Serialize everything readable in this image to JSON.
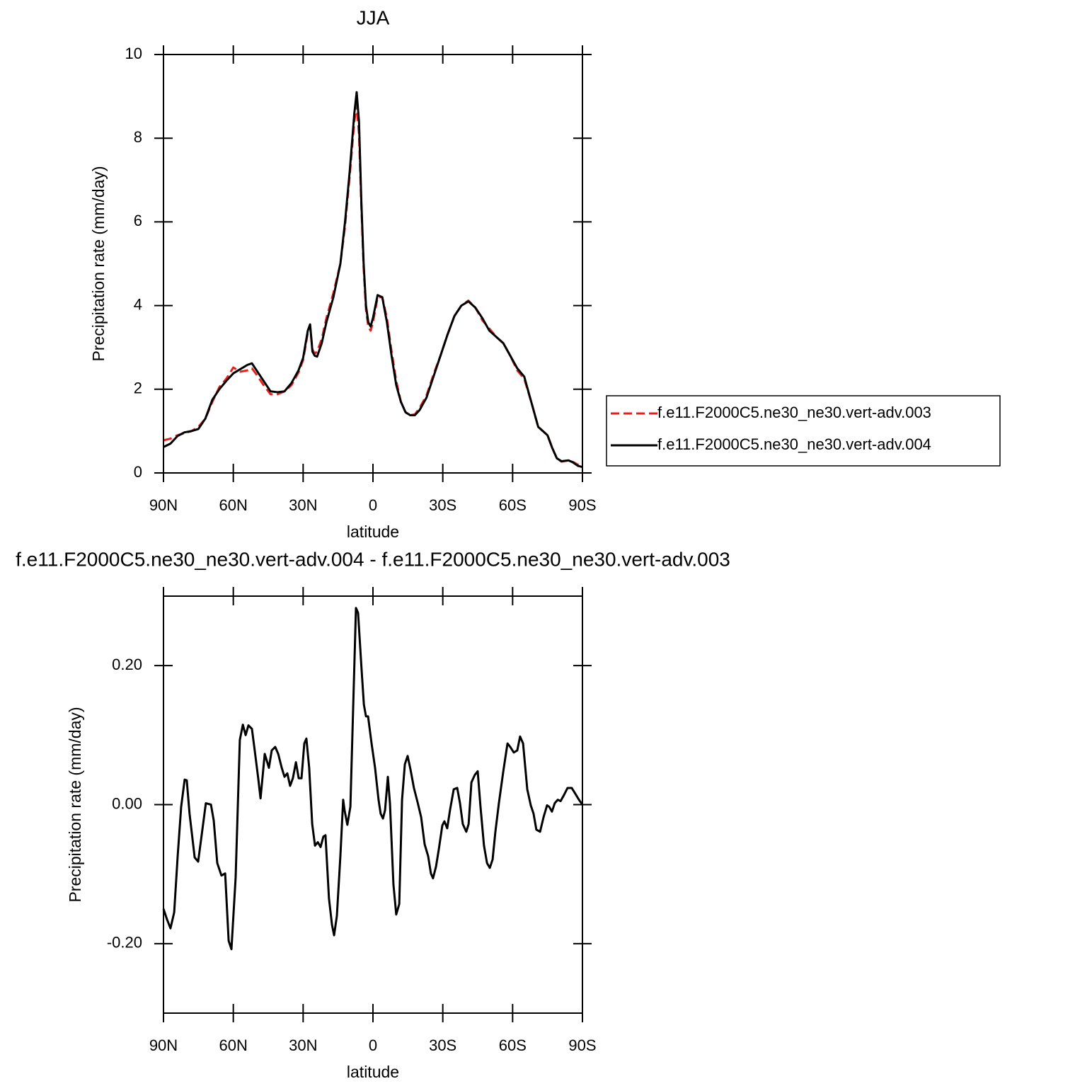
{
  "chart_data": [
    {
      "type": "line",
      "title": "JJA",
      "xlabel": "latitude",
      "ylabel": "Precipitation rate (mm/day)",
      "xlim": [
        90,
        -90
      ],
      "xticks": [
        {
          "value": 90,
          "label": "90N"
        },
        {
          "value": 60,
          "label": "60N"
        },
        {
          "value": 30,
          "label": "30N"
        },
        0,
        {
          "value": -30,
          "label": "30S"
        },
        {
          "value": -60,
          "label": "60S"
        },
        {
          "value": -90,
          "label": "90S"
        }
      ],
      "ylim": [
        0,
        10
      ],
      "yticks": [
        0,
        2,
        4,
        6,
        8,
        10
      ],
      "legend": "right",
      "x": [
        90,
        87,
        84,
        81,
        78,
        75,
        72,
        69,
        66,
        63,
        60,
        57,
        54,
        52,
        50,
        47,
        44,
        41,
        38,
        35,
        32,
        30,
        28,
        27,
        26,
        25,
        24,
        22,
        20,
        17,
        14,
        12,
        10,
        8,
        7,
        6,
        5,
        4,
        3,
        2,
        1,
        0,
        -2,
        -4,
        -6,
        -8,
        -10,
        -12,
        -14,
        -16,
        -18,
        -20,
        -23,
        -26,
        -29,
        -32,
        -35,
        -38,
        -41,
        -44,
        -47,
        -50,
        -53,
        -56,
        -59,
        -62,
        -65,
        -68,
        -71,
        -73,
        -75,
        -77,
        -79,
        -81,
        -84,
        -86,
        -88,
        -90
      ],
      "series": [
        {
          "name": "f.e11.F2000C5.ne30_ne30.vert-adv.003",
          "color": "#e8201c",
          "dash": true,
          "values": [
            0.78,
            0.82,
            0.9,
            0.95,
            1.0,
            1.1,
            1.3,
            1.7,
            2.05,
            2.25,
            2.52,
            2.42,
            2.45,
            2.5,
            2.35,
            2.1,
            1.88,
            1.88,
            1.95,
            2.1,
            2.4,
            2.7,
            3.35,
            3.5,
            2.95,
            2.85,
            2.9,
            3.2,
            3.7,
            4.3,
            5.0,
            5.9,
            7.1,
            8.4,
            8.8,
            8.1,
            6.4,
            4.9,
            3.9,
            3.5,
            3.4,
            3.6,
            4.2,
            4.2,
            3.7,
            2.9,
            2.2,
            1.7,
            1.45,
            1.38,
            1.4,
            1.55,
            1.85,
            2.35,
            2.8,
            3.3,
            3.75,
            4.0,
            4.12,
            3.95,
            3.65,
            3.45,
            3.25,
            3.1,
            2.8,
            2.45,
            2.25,
            1.7,
            1.1,
            1.0,
            0.9,
            0.6,
            0.35,
            0.27,
            0.3,
            0.26,
            0.2,
            0.15
          ]
        },
        {
          "name": "f.e11.F2000C5.ne30_ne30.vert-adv.004",
          "color": "#000000",
          "dash": false,
          "values": [
            0.62,
            0.7,
            0.88,
            0.97,
            1.0,
            1.05,
            1.3,
            1.75,
            2.0,
            2.2,
            2.38,
            2.48,
            2.58,
            2.62,
            2.45,
            2.2,
            1.95,
            1.93,
            1.95,
            2.15,
            2.45,
            2.75,
            3.4,
            3.55,
            2.9,
            2.8,
            2.78,
            3.1,
            3.6,
            4.2,
            5.0,
            6.0,
            7.2,
            8.6,
            9.1,
            8.4,
            6.5,
            5.0,
            4.0,
            3.6,
            3.5,
            3.7,
            4.25,
            4.2,
            3.6,
            2.8,
            2.1,
            1.7,
            1.45,
            1.38,
            1.38,
            1.5,
            1.8,
            2.3,
            2.8,
            3.3,
            3.75,
            4.0,
            4.1,
            3.95,
            3.7,
            3.4,
            3.25,
            3.1,
            2.8,
            2.5,
            2.3,
            1.7,
            1.1,
            1.0,
            0.9,
            0.6,
            0.35,
            0.28,
            0.3,
            0.25,
            0.17,
            0.14
          ]
        }
      ]
    },
    {
      "type": "line",
      "title": "f.e11.F2000C5.ne30_ne30.vert-adv.004 - f.e11.F2000C5.ne30_ne30.vert-adv.003",
      "xlabel": "latitude",
      "ylabel": "Precipitation rate (mm/day)",
      "xlim": [
        90,
        -90
      ],
      "xticks": [
        {
          "value": 90,
          "label": "90N"
        },
        {
          "value": 60,
          "label": "60N"
        },
        {
          "value": 30,
          "label": "30N"
        },
        0,
        {
          "value": -30,
          "label": "30S"
        },
        {
          "value": -60,
          "label": "60S"
        },
        {
          "value": -90,
          "label": "90S"
        }
      ],
      "ylim": [
        -0.3,
        0.3
      ],
      "yticks": [
        {
          "value": -0.2,
          "label": "-0.20"
        },
        {
          "value": 0,
          "label": "0.00"
        },
        {
          "value": 0.2,
          "label": "0.20"
        }
      ],
      "x": [
        90,
        88.5,
        87,
        85.4,
        83.9,
        82.4,
        80.9,
        80,
        78.8,
        76.6,
        75.1,
        73.6,
        71.8,
        69.6,
        68.4,
        66.9,
        65.1,
        63.5,
        62,
        60.8,
        59,
        57.2,
        55.9,
        54.7,
        53.5,
        52,
        50.8,
        49.3,
        48.3,
        46.5,
        44.7,
        43.5,
        42,
        40.7,
        39.2,
        38,
        36.8,
        35.6,
        34.4,
        33.1,
        31.9,
        30.7,
        29.5,
        28.6,
        27.4,
        26.1,
        24.9,
        23.7,
        22.5,
        21.3,
        20.4,
        18.9,
        17.6,
        16.7,
        15.5,
        14,
        12.8,
        12.2,
        11,
        9.7,
        7.3,
        6.4,
        4.9,
        3.9,
        3,
        2.1,
        0.6,
        -0.9,
        -2.4,
        -3.3,
        -4.3,
        -5.2,
        -6.4,
        -7.3,
        -8.8,
        -10,
        -11.3,
        -12.5,
        -13.7,
        -14.9,
        -16.1,
        -17.6,
        -19.2,
        -20.7,
        -22.2,
        -23.7,
        -24.9,
        -25.8,
        -27.1,
        -28.3,
        -29.8,
        -30.7,
        -31.9,
        -33.1,
        -34.7,
        -36.2,
        -37.4,
        -38.6,
        -40.1,
        -41.1,
        -42.3,
        -43.8,
        -45,
        -46.2,
        -47.7,
        -49,
        -50.2,
        -51.4,
        -52.6,
        -54.1,
        -56,
        -57.8,
        -59,
        -60.5,
        -62,
        -63.2,
        -64.5,
        -66.3,
        -67.8,
        -69,
        -70.2,
        -71.8,
        -73.3,
        -74.8,
        -75.7,
        -76.9,
        -78.1,
        -79.4,
        -80.6,
        -82.1,
        -83.6,
        -85.4,
        -86.7,
        -88.5,
        -90
      ],
      "series": [
        {
          "color": "#000000",
          "dash": false,
          "values": [
            -0.15,
            -0.165,
            -0.178,
            -0.155,
            -0.074,
            -0.003,
            0.036,
            0.035,
            -0.013,
            -0.076,
            -0.082,
            -0.044,
            0.002,
            0,
            -0.023,
            -0.084,
            -0.102,
            -0.099,
            -0.196,
            -0.208,
            -0.105,
            0.093,
            0.115,
            0.1,
            0.114,
            0.109,
            0.078,
            0.038,
            0.009,
            0.073,
            0.053,
            0.078,
            0.083,
            0.073,
            0.053,
            0.04,
            0.045,
            0.027,
            0.038,
            0.061,
            0.038,
            0.038,
            0.088,
            0.095,
            0.053,
            -0.028,
            -0.059,
            -0.054,
            -0.061,
            -0.046,
            -0.044,
            -0.135,
            -0.173,
            -0.188,
            -0.16,
            -0.074,
            0.007,
            -0.008,
            -0.029,
            -0.003,
            0.283,
            0.276,
            0.195,
            0.144,
            0.127,
            0.127,
            0.088,
            0.053,
            0.007,
            -0.013,
            -0.02,
            -0.008,
            0.04,
            0.002,
            -0.115,
            -0.158,
            -0.143,
            0.007,
            0.058,
            0.07,
            0.051,
            0.024,
            0.003,
            -0.018,
            -0.057,
            -0.074,
            -0.099,
            -0.106,
            -0.089,
            -0.064,
            -0.03,
            -0.024,
            -0.034,
            -0.008,
            0.022,
            0.024,
            0.002,
            -0.028,
            -0.039,
            -0.028,
            0.032,
            0.043,
            0.048,
            -0.003,
            -0.059,
            -0.084,
            -0.091,
            -0.079,
            -0.039,
            0.002,
            0.048,
            0.088,
            0.083,
            0.075,
            0.078,
            0.098,
            0.088,
            0.022,
            -0.001,
            -0.013,
            -0.036,
            -0.039,
            -0.018,
            -0.001,
            -0.003,
            -0.01,
            0.002,
            0.007,
            0.005,
            0.014,
            0.024,
            0.024,
            0.017,
            0.007,
            0
          ]
        }
      ]
    }
  ]
}
